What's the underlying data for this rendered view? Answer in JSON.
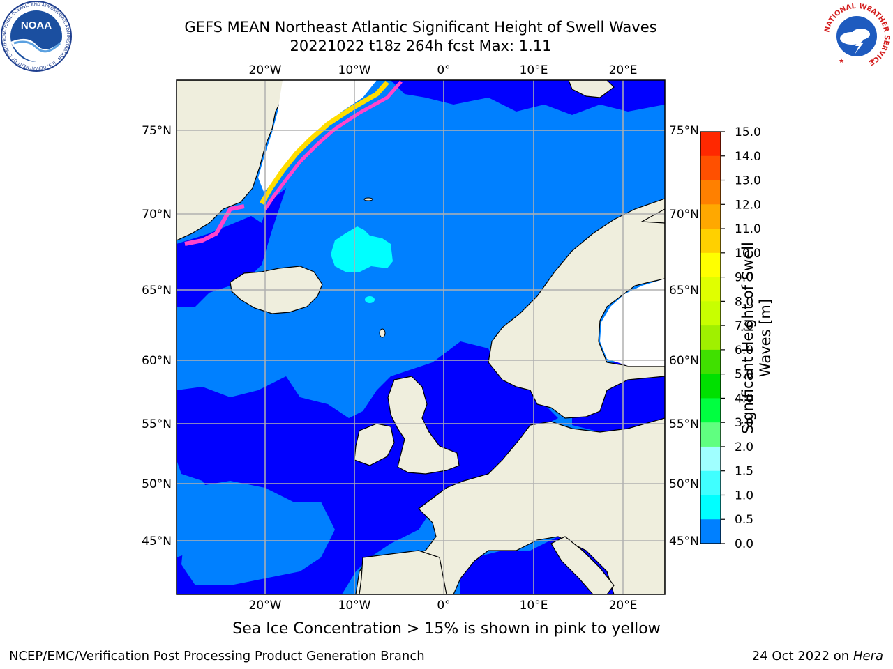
{
  "title": {
    "line1": "GEFS MEAN Northeast Atlantic Significant Height of Swell Waves",
    "line2": "20221022 t18z 264h fcst   Max: 1.11"
  },
  "map": {
    "lon_labels": [
      "20°W",
      "10°W",
      "0°",
      "10°E",
      "20°E"
    ],
    "lat_labels": [
      "75°N",
      "70°N",
      "65°N",
      "60°N",
      "55°N",
      "50°N",
      "45°N"
    ],
    "colors": {
      "land": "#efeedd",
      "ocean_low": "#0000ff",
      "ocean_mid": "#0080ff",
      "swell_cyan": "#00ffff",
      "ice_pink": "#ff44cc",
      "ice_yellow": "#ffdd00",
      "grid": "#b0b0b0"
    }
  },
  "colorbar": {
    "label": "Significant Height of Swell Waves [m]",
    "ticks": [
      "15.0",
      "14.0",
      "13.0",
      "12.0",
      "11.0",
      "10.0",
      "9.0",
      "8.0",
      "7.0",
      "6.0",
      "5.0",
      "4.0",
      "3.0",
      "2.0",
      "1.5",
      "1.0",
      "0.5",
      "0.0"
    ],
    "colors": [
      "#ff0000",
      "#ff2800",
      "#ff5000",
      "#ff8000",
      "#ffa800",
      "#ffd000",
      "#ffff00",
      "#e0ff00",
      "#c8ff00",
      "#a0f000",
      "#40e000",
      "#00e000",
      "#00ff40",
      "#60ff80",
      "#a0ffff",
      "#40ffff",
      "#00ffff",
      "#0080ff",
      "#0000ff"
    ]
  },
  "caption": "Sea Ice Concentration > 15% is shown in pink to yellow",
  "footer": {
    "left": "NCEP/EMC/Verification Post Processing Product Generation Branch",
    "right_date": "24 Oct 2022 on",
    "right_host": "Hera"
  },
  "logos": {
    "noaa_text": "NOAA",
    "noaa_ring": "NATIONAL OCEANIC AND ATMOSPHERIC ADMINISTRATION · U.S. DEPARTMENT OF COMMERCE",
    "nws_ring": "NATIONAL WEATHER SERVICE"
  }
}
